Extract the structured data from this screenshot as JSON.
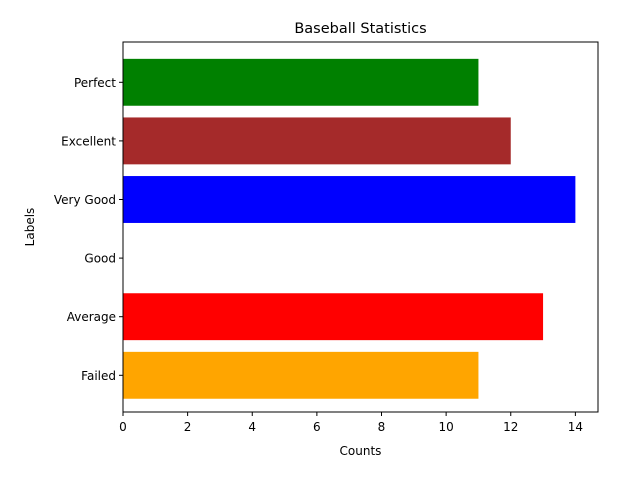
{
  "chart_data": {
    "type": "bar",
    "orientation": "horizontal",
    "title": "Baseball Statistics",
    "xlabel": "Counts",
    "ylabel": "Labels",
    "categories": [
      "Failed",
      "Average",
      "Good",
      "Very Good",
      "Excellent",
      "Perfect"
    ],
    "values": [
      11,
      13,
      0,
      14,
      12,
      11
    ],
    "colors": [
      "#ffa500",
      "#ff0000",
      "#ffffff",
      "#0000ff",
      "#a52a2a",
      "#008000"
    ],
    "xlim": [
      0,
      14.7
    ],
    "xticks": [
      "0",
      "2",
      "4",
      "6",
      "8",
      "10",
      "12",
      "14"
    ],
    "grid": false,
    "legend": "none"
  }
}
